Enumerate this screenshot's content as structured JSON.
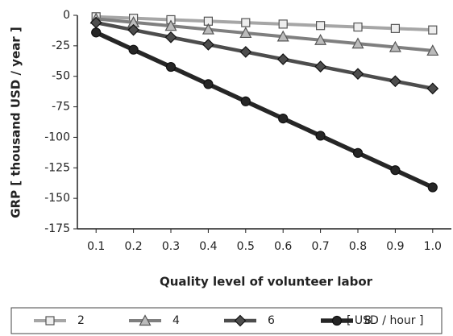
{
  "chart_data": {
    "type": "line",
    "xlabel": "Quality level of volunteer labor",
    "ylabel": "GRP [ thousand USD / year ]",
    "x": [
      0.1,
      0.2,
      0.3,
      0.4,
      0.5,
      0.6,
      0.7,
      0.8,
      0.9,
      1.0
    ],
    "series": [
      {
        "name": "2",
        "color": "#a6a6a6",
        "marker": "square",
        "values": [
          -1.2,
          -2.4,
          -3.6,
          -4.8,
          -6,
          -7.2,
          -8.4,
          -9.6,
          -10.8,
          -12
        ]
      },
      {
        "name": "4",
        "color": "#7f7f7f",
        "marker": "triangle",
        "values": [
          -2.9,
          -5.8,
          -8.7,
          -11.6,
          -14.5,
          -17.4,
          -20.3,
          -23.2,
          -26.1,
          -29
        ]
      },
      {
        "name": "6",
        "color": "#4d4d4d",
        "marker": "diamond",
        "values": [
          -6,
          -12,
          -18,
          -24,
          -30,
          -36,
          -42,
          -48,
          -54,
          -60
        ]
      },
      {
        "name": "8",
        "color": "#262626",
        "marker": "circle",
        "values": [
          -14.1,
          -28.2,
          -42.3,
          -56.4,
          -70.5,
          -84.6,
          -98.7,
          -112.8,
          -126.9,
          -141
        ]
      }
    ],
    "legend_unit": "[ USD / hour ]",
    "xlim": [
      0.05,
      1.05
    ],
    "xticks": [
      0.1,
      0.2,
      0.3,
      0.4,
      0.5,
      0.6,
      0.7,
      0.8,
      0.9,
      {
        "value": 1,
        "label": "1.0"
      }
    ],
    "ylim": [
      -175,
      0
    ],
    "yticks": [
      0,
      -25,
      -50,
      -75,
      -100,
      -125,
      -150,
      -175
    ],
    "legend": "bottom"
  }
}
